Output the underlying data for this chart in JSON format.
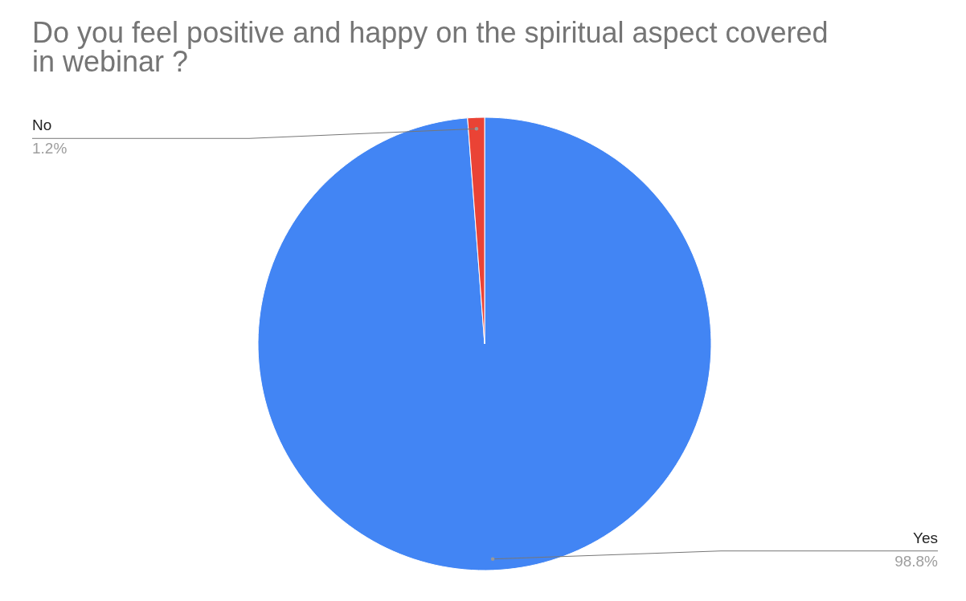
{
  "chart_data": {
    "type": "pie",
    "title": "Do you feel positive and happy on the spiritual aspect covered in webinar ?",
    "categories": [
      "Yes",
      "No"
    ],
    "values": [
      98.8,
      1.2
    ],
    "colors": [
      "#4285f4",
      "#ea4335"
    ],
    "value_labels": [
      "98.8%",
      "1.2%"
    ]
  }
}
